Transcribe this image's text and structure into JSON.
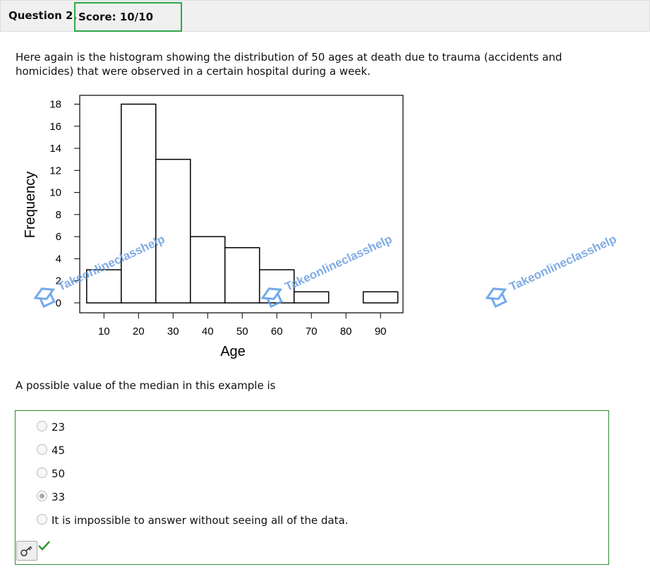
{
  "header": {
    "question": "Question 2.",
    "score": "Score: 10/10"
  },
  "question_text": "Here again is the histogram showing the distribution of 50 ages at death due to trauma (accidents and homicides) that were observed in a certain hospital during a week.",
  "chart_data": {
    "type": "histogram",
    "x_label": "Age",
    "y_label": "Frequency",
    "bins": [
      5,
      15,
      25,
      35,
      45,
      55,
      65,
      75,
      85,
      95
    ],
    "counts": [
      3,
      18,
      13,
      6,
      5,
      3,
      1,
      0,
      1
    ],
    "xlim": [
      3,
      96.5
    ],
    "ylim": [
      -0.9,
      18.8
    ],
    "xticks": [
      10,
      20,
      30,
      40,
      50,
      60,
      70,
      80,
      90
    ],
    "yticks": [
      0,
      2,
      4,
      6,
      8,
      10,
      12,
      14,
      16,
      18
    ],
    "color": "#ffffff",
    "grid": false,
    "watermark": "Takeonlineclasshelp"
  },
  "prompt": "A possible value of the median in this example is",
  "options": [
    "23",
    "45",
    "50",
    "33",
    "It is impossible to answer without seeing all of the data."
  ],
  "selected": 3
}
